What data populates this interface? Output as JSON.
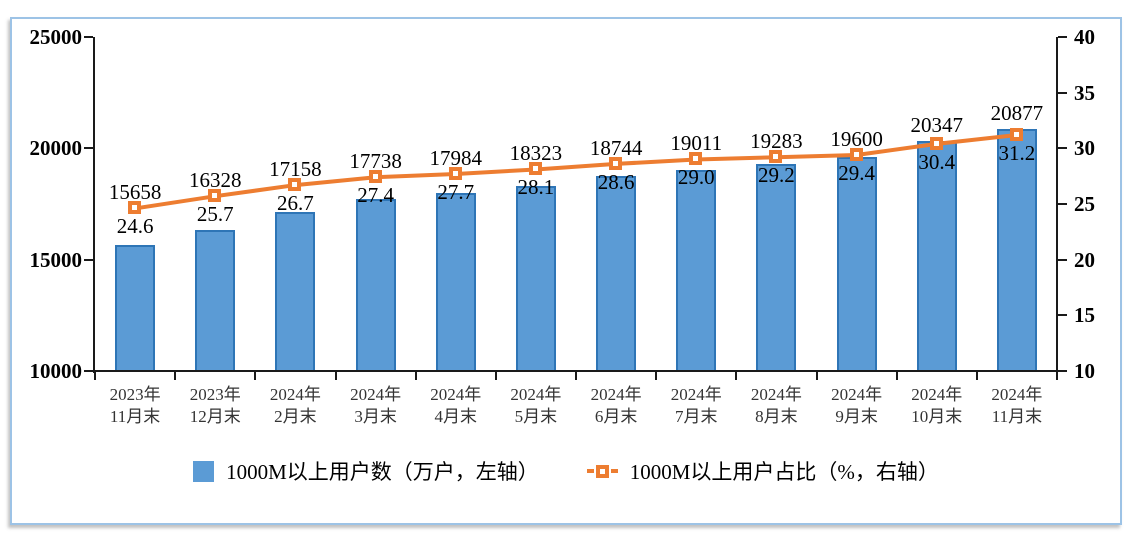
{
  "chart_data": {
    "type": "bar+line combo",
    "title": "",
    "categories": [
      "2023年\n11月末",
      "2023年\n12月末",
      "2024年\n2月末",
      "2024年\n3月末",
      "2024年\n4月末",
      "2024年\n5月末",
      "2024年\n6月末",
      "2024年\n7月末",
      "2024年\n8月末",
      "2024年\n9月末",
      "2024年\n10月末",
      "2024年\n11月末"
    ],
    "series": [
      {
        "name": "1000M以上用户数（万户，左轴）",
        "type": "bar",
        "axis": "left",
        "color": "#5B9BD5",
        "border_color": "#2E75B6",
        "values": [
          15658,
          16328,
          17158,
          17738,
          17984,
          18323,
          18744,
          19011,
          19283,
          19600,
          20347,
          20877
        ]
      },
      {
        "name": "1000M以上用户占比（%，右轴）",
        "type": "line",
        "axis": "right",
        "color": "#ED7D31",
        "marker": "hollow-square",
        "values": [
          24.6,
          25.7,
          26.7,
          27.4,
          27.7,
          28.1,
          28.6,
          29.0,
          29.2,
          29.4,
          30.4,
          31.2
        ]
      }
    ],
    "value_label_format": {
      "line_decimals": 1
    },
    "axes": {
      "left": {
        "min": 10000,
        "max": 25000,
        "step": 5000,
        "ticks": [
          10000,
          15000,
          20000,
          25000
        ]
      },
      "right": {
        "min": 10,
        "max": 40,
        "step": 5,
        "ticks": [
          10,
          15,
          20,
          25,
          30,
          35,
          40
        ]
      }
    },
    "grid": false,
    "legend_position": "bottom",
    "frame_color": "#9DC3E6",
    "axis_color": "#1a1a1a"
  }
}
